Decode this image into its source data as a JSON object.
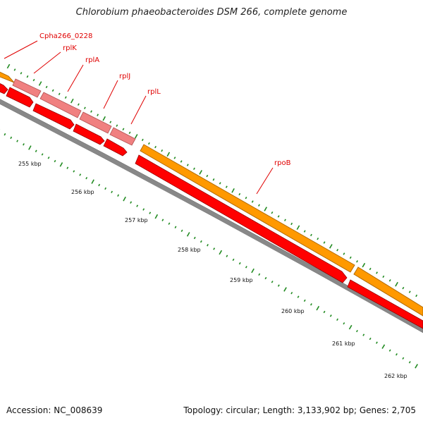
{
  "title": "Chlorobium phaeobacteroides DSM 266, complete genome",
  "accession": "Accession: NC_008639",
  "summary": "Topology: circular; Length: 3,133,902 bp; Genes: 2,705",
  "colors": {
    "orange_track": "#ff9900",
    "orange_border": "#b36b00",
    "pink_track": "#f08080",
    "red_track": "#ff0000",
    "red_border": "#990000",
    "backbone": "#808080",
    "tick": "#228b22",
    "label": "#e00000"
  },
  "genes": [
    {
      "name": "Cpha266_0228"
    },
    {
      "name": "rplK"
    },
    {
      "name": "rplA"
    },
    {
      "name": "rplJ"
    },
    {
      "name": "rplL"
    },
    {
      "name": "rpoB"
    }
  ],
  "scale_labels": [
    "255 kbp",
    "256 kbp",
    "257 kbp",
    "258 kbp",
    "259 kbp",
    "260 kbp",
    "261 kbp",
    "262 kbp"
  ]
}
